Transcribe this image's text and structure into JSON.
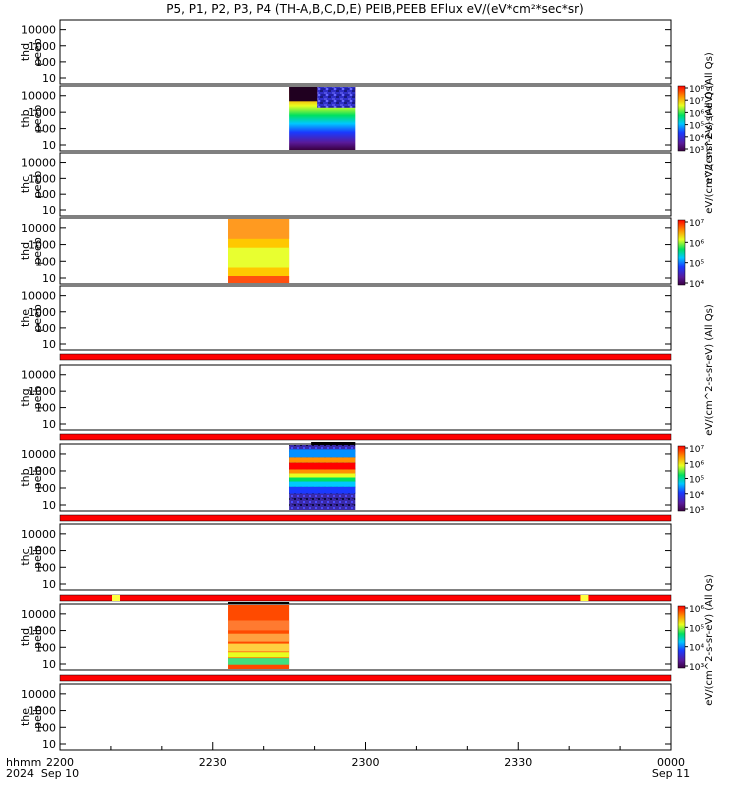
{
  "chart_data": {
    "type": "heatmap",
    "title": "P5, P1, P2, P3, P4 (TH-A,B,C,D,E) PEIB,PEEB EFlux eV/(eV*cm²*sec*sr)",
    "x_range": [
      "22:00",
      "24:00"
    ],
    "x_ticks": [
      {
        "label": "2200",
        "date": "Sep 10"
      },
      {
        "label": "2230",
        "date": ""
      },
      {
        "label": "2300",
        "date": ""
      },
      {
        "label": "2330",
        "date": ""
      },
      {
        "label": "0000",
        "date": "Sep 11"
      }
    ],
    "x_header": {
      "format": "hhmm",
      "year": "2024"
    },
    "y_scale": "log",
    "y_ticks": [
      "10",
      "100",
      "1000",
      "10000"
    ],
    "panels": [
      {
        "label": [
          "thd",
          "peeb"
        ],
        "data": []
      },
      {
        "label": [
          "thb",
          "peeb"
        ],
        "data": [
          {
            "start": "22:45",
            "end": "22:58",
            "style": "peeb-thb"
          }
        ]
      },
      {
        "label": [
          "thc",
          "peeb"
        ],
        "data": []
      },
      {
        "label": [
          "thd",
          "peeb"
        ],
        "data": [
          {
            "start": "22:33",
            "end": "22:45",
            "style": "peeb-thd"
          }
        ]
      },
      {
        "label": [
          "the",
          "peeb"
        ],
        "data": []
      },
      {
        "label": [
          "thg",
          "peib"
        ],
        "data": []
      },
      {
        "label": [
          "thb",
          "peib"
        ],
        "data": [
          {
            "start": "22:45",
            "end": "22:58",
            "style": "peib-thb"
          }
        ]
      },
      {
        "label": [
          "thc",
          "peib"
        ],
        "data": []
      },
      {
        "label": [
          "thd",
          "peib"
        ],
        "data": [
          {
            "start": "22:33",
            "end": "22:45",
            "style": "peib-thd"
          }
        ]
      },
      {
        "label": [
          "the",
          "peib"
        ],
        "data": []
      }
    ],
    "colorbars": [
      {
        "panel": 1,
        "ticks": [
          "10³",
          "10⁴",
          "10⁵",
          "10⁶",
          "10⁷",
          "10⁸"
        ],
        "label": "eV/(cm^2-s-sr-eV) (All Qs)"
      },
      {
        "panel": 3,
        "ticks": [
          "10⁴",
          "10⁵",
          "10⁶",
          "10⁷"
        ],
        "label": "eV/(cm^2-s-sr-eV) (All Qs)"
      },
      {
        "panel": 6,
        "ticks": [
          "10³",
          "10⁴",
          "10⁵",
          "10⁶",
          "10⁷"
        ],
        "label": "eV/(cm^2-s-sr-eV) (All Qs)"
      },
      {
        "panel": 8,
        "ticks": [
          "10³",
          "10⁴",
          "10⁵",
          "10⁶"
        ],
        "label": "eV/(cm^2-s-sr-eV) (All Qs)"
      }
    ],
    "flag_bars": [
      {
        "below_panel": 4
      },
      {
        "below_panel": 5
      },
      {
        "below_panel": 6
      },
      {
        "below_panel": 7,
        "highlights": [
          "22:11",
          "23:43"
        ]
      },
      {
        "below_panel": 8
      }
    ],
    "colors": {
      "flag": "#ff0000",
      "flag_highlight": "#ffff40",
      "axis": "#000000"
    }
  }
}
